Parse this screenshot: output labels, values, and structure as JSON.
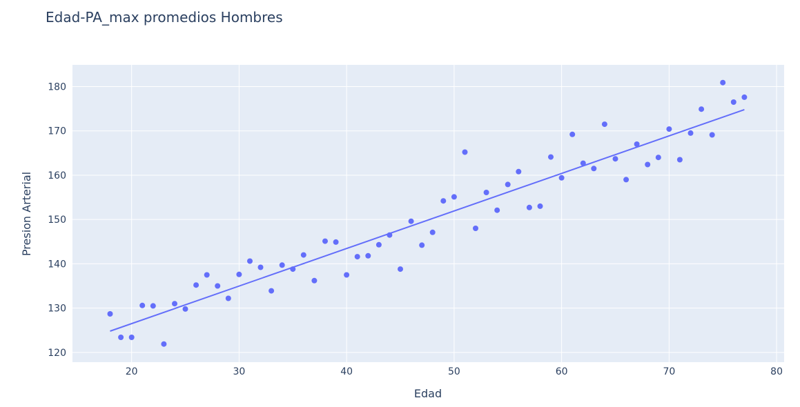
{
  "chart_data": {
    "type": "scatter",
    "title": "Edad-PA_max promedios Hombres",
    "xlabel": "Edad",
    "ylabel": "Presion Arterial",
    "xlim": [
      14.5,
      80.7
    ],
    "ylim": [
      117.8,
      184.9
    ],
    "xticks": [
      20,
      30,
      40,
      50,
      60,
      70,
      80
    ],
    "yticks": [
      120,
      130,
      140,
      150,
      160,
      170,
      180
    ],
    "grid": true,
    "legend": "none",
    "colors": {
      "plot_bg": "#e5ecf6",
      "grid": "#ffffff",
      "marker": "#636efa",
      "text": "#2a3f5f"
    },
    "series": [
      {
        "mode": "markers",
        "x": [
          18,
          19,
          20,
          21,
          22,
          23,
          24,
          25,
          26,
          27,
          28,
          29,
          30,
          31,
          32,
          33,
          34,
          35,
          36,
          37,
          38,
          39,
          40,
          41,
          42,
          43,
          44,
          45,
          46,
          47,
          48,
          49,
          50,
          51,
          52,
          53,
          54,
          55,
          56,
          57,
          58,
          59,
          60,
          61,
          62,
          63,
          64,
          65,
          66,
          67,
          68,
          69,
          70,
          71,
          72,
          73,
          74,
          75,
          76,
          77
        ],
        "y": [
          128.7,
          123.4,
          123.4,
          130.6,
          130.5,
          121.9,
          131.0,
          129.8,
          135.2,
          137.5,
          135.0,
          132.2,
          137.6,
          140.6,
          139.2,
          133.9,
          139.7,
          138.8,
          142.0,
          136.2,
          145.1,
          144.9,
          137.5,
          141.6,
          141.8,
          144.3,
          146.5,
          138.8,
          149.6,
          144.2,
          147.1,
          154.2,
          155.1,
          165.2,
          148.0,
          156.1,
          152.1,
          157.9,
          160.8,
          152.7,
          153.0,
          164.1,
          159.4,
          169.2,
          162.7,
          161.5,
          171.5,
          163.7,
          159.0,
          167.0,
          162.4,
          164.0,
          170.4,
          163.5,
          169.5,
          174.9,
          169.1,
          180.9,
          176.5,
          177.6
        ]
      },
      {
        "mode": "lines",
        "x": [
          18,
          77
        ],
        "y": [
          124.8,
          174.8
        ]
      }
    ]
  }
}
